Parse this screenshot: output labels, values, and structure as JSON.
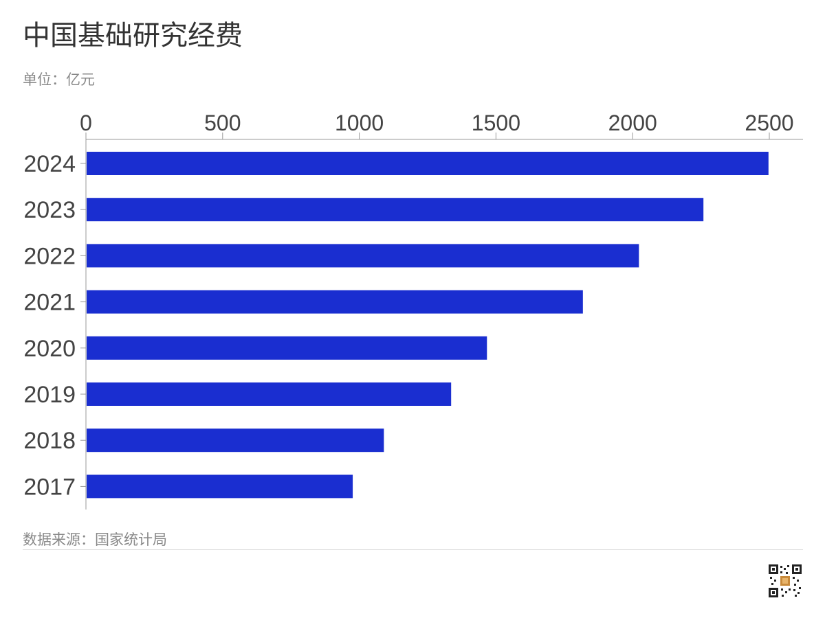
{
  "header": {
    "title": "中国基础研究经费",
    "unit": "单位：亿元"
  },
  "footer": {
    "source": "数据来源：国家统计局"
  },
  "colors": {
    "bar": "#1a2ed0",
    "axis": "#999999",
    "text": "#444444"
  },
  "chart_data": {
    "type": "bar",
    "orientation": "horizontal",
    "title": "中国基础研究经费",
    "subtitle": "单位：亿元",
    "categories": [
      "2024",
      "2023",
      "2022",
      "2021",
      "2020",
      "2019",
      "2018",
      "2017"
    ],
    "values": [
      2497,
      2259,
      2023,
      1818,
      1467,
      1336,
      1090,
      976
    ],
    "xlim": [
      0,
      2500
    ],
    "xticks": [
      0,
      500,
      1000,
      1500,
      2000,
      2500
    ],
    "x_axis_position": "top",
    "grid": false,
    "legend": "none"
  }
}
